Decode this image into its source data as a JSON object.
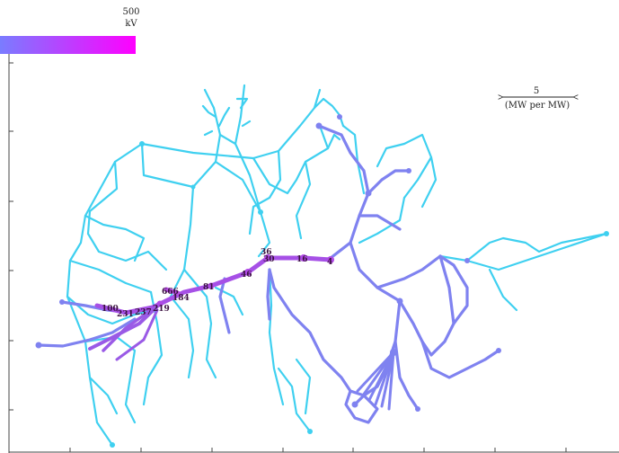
{
  "colorbar": {
    "max_value": "500",
    "unit": "kV",
    "gradient_start": "#7a7cff",
    "gradient_end": "#ff00ff"
  },
  "scale": {
    "value": "5",
    "unit": "(MW per MW)"
  },
  "bus_labels": [
    "100",
    "231",
    "237",
    "219",
    "666",
    "184",
    "81",
    "46",
    "30",
    "36",
    "16",
    "4"
  ],
  "colors": {
    "low_voltage": "#3fd0f0",
    "mid_voltage": "#7f82f0",
    "high_voltage": "#b04ae6",
    "axis": "#444444"
  }
}
